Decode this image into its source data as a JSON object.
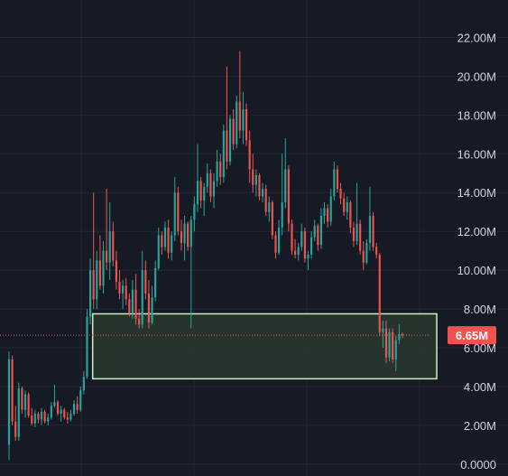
{
  "chart_data": {
    "type": "candlestick",
    "y_axis": {
      "ticks": [
        0,
        2000000,
        4000000,
        6000000,
        8000000,
        10000000,
        12000000,
        14000000,
        16000000,
        18000000,
        20000000,
        22000000
      ],
      "tick_labels": [
        "0.0000",
        "2.00M",
        "4.00M",
        "6.00M",
        "8.00M",
        "10.00M",
        "12.00M",
        "14.00M",
        "16.00M",
        "18.00M",
        "20.00M",
        "22.00M"
      ],
      "ylim": [
        -100000,
        23000000
      ],
      "position": "right"
    },
    "grid": true,
    "current_price": {
      "value": 6650000,
      "label": "6.65M"
    },
    "zone": {
      "from": 4400000,
      "to": 7750000,
      "start_index": 26,
      "end_index": 131
    },
    "colors": {
      "background": "#161a25",
      "up": "#26a69a",
      "down": "#ef5350",
      "grid": "#232734",
      "zone_border": "#c8f0c0",
      "zone_fill": "#2a3a30",
      "price_line": "#ef5350",
      "price_tag": "#ef5350"
    },
    "candles": [
      {
        "o": 1.0,
        "h": 5.8,
        "l": 0.2,
        "c": 5.4
      },
      {
        "o": 5.4,
        "h": 5.6,
        "l": 2.0,
        "c": 2.2
      },
      {
        "o": 2.2,
        "h": 3.0,
        "l": 1.2,
        "c": 1.4
      },
      {
        "o": 1.4,
        "h": 4.2,
        "l": 1.2,
        "c": 3.9
      },
      {
        "o": 3.9,
        "h": 4.0,
        "l": 2.6,
        "c": 2.8
      },
      {
        "o": 2.8,
        "h": 3.8,
        "l": 2.4,
        "c": 3.6
      },
      {
        "o": 3.6,
        "h": 3.7,
        "l": 2.4,
        "c": 2.5
      },
      {
        "o": 2.5,
        "h": 2.9,
        "l": 2.0,
        "c": 2.1
      },
      {
        "o": 2.1,
        "h": 2.8,
        "l": 1.9,
        "c": 2.6
      },
      {
        "o": 2.6,
        "h": 2.7,
        "l": 2.1,
        "c": 2.3
      },
      {
        "o": 2.3,
        "h": 2.9,
        "l": 2.0,
        "c": 2.7
      },
      {
        "o": 2.7,
        "h": 2.8,
        "l": 2.1,
        "c": 2.2
      },
      {
        "o": 2.2,
        "h": 2.6,
        "l": 2.0,
        "c": 2.4
      },
      {
        "o": 2.4,
        "h": 3.2,
        "l": 2.3,
        "c": 3.0
      },
      {
        "o": 3.0,
        "h": 4.1,
        "l": 2.9,
        "c": 3.2
      },
      {
        "o": 3.2,
        "h": 3.3,
        "l": 2.5,
        "c": 2.6
      },
      {
        "o": 2.6,
        "h": 3.0,
        "l": 2.2,
        "c": 2.8
      },
      {
        "o": 2.8,
        "h": 2.9,
        "l": 2.3,
        "c": 2.4
      },
      {
        "o": 2.4,
        "h": 2.7,
        "l": 2.1,
        "c": 2.3
      },
      {
        "o": 2.3,
        "h": 2.8,
        "l": 2.2,
        "c": 2.6
      },
      {
        "o": 2.6,
        "h": 3.3,
        "l": 2.5,
        "c": 3.1
      },
      {
        "o": 3.1,
        "h": 3.5,
        "l": 2.6,
        "c": 2.8
      },
      {
        "o": 2.8,
        "h": 4.0,
        "l": 2.7,
        "c": 3.8
      },
      {
        "o": 3.8,
        "h": 4.8,
        "l": 3.6,
        "c": 4.5
      },
      {
        "o": 4.5,
        "h": 8.0,
        "l": 4.4,
        "c": 7.6
      },
      {
        "o": 7.6,
        "h": 10.6,
        "l": 7.2,
        "c": 10.0
      },
      {
        "o": 10.0,
        "h": 14.0,
        "l": 8.0,
        "c": 8.5
      },
      {
        "o": 8.5,
        "h": 11.0,
        "l": 8.0,
        "c": 10.5
      },
      {
        "o": 10.5,
        "h": 11.8,
        "l": 9.0,
        "c": 9.2
      },
      {
        "o": 9.2,
        "h": 11.5,
        "l": 8.8,
        "c": 11.0
      },
      {
        "o": 11.0,
        "h": 14.2,
        "l": 10.0,
        "c": 10.4
      },
      {
        "o": 10.4,
        "h": 13.5,
        "l": 9.5,
        "c": 12.0
      },
      {
        "o": 12.0,
        "h": 12.5,
        "l": 10.2,
        "c": 10.5
      },
      {
        "o": 10.5,
        "h": 11.0,
        "l": 9.0,
        "c": 9.4
      },
      {
        "o": 9.4,
        "h": 10.0,
        "l": 8.5,
        "c": 8.8
      },
      {
        "o": 8.8,
        "h": 9.5,
        "l": 8.0,
        "c": 9.2
      },
      {
        "o": 9.2,
        "h": 9.6,
        "l": 8.2,
        "c": 8.5
      },
      {
        "o": 8.5,
        "h": 8.8,
        "l": 7.6,
        "c": 7.8
      },
      {
        "o": 7.8,
        "h": 9.5,
        "l": 7.5,
        "c": 9.0
      },
      {
        "o": 9.0,
        "h": 9.8,
        "l": 7.2,
        "c": 7.5
      },
      {
        "o": 7.5,
        "h": 8.0,
        "l": 7.0,
        "c": 7.2
      },
      {
        "o": 7.2,
        "h": 11.0,
        "l": 7.0,
        "c": 10.0
      },
      {
        "o": 10.0,
        "h": 10.5,
        "l": 8.5,
        "c": 8.8
      },
      {
        "o": 8.8,
        "h": 9.5,
        "l": 7.0,
        "c": 7.3
      },
      {
        "o": 7.3,
        "h": 9.2,
        "l": 7.2,
        "c": 8.6
      },
      {
        "o": 8.6,
        "h": 10.5,
        "l": 8.4,
        "c": 10.1
      },
      {
        "o": 10.1,
        "h": 12.2,
        "l": 10.0,
        "c": 11.8
      },
      {
        "o": 11.8,
        "h": 12.0,
        "l": 10.8,
        "c": 11.2
      },
      {
        "o": 11.2,
        "h": 12.5,
        "l": 11.0,
        "c": 12.2
      },
      {
        "o": 12.2,
        "h": 12.6,
        "l": 10.6,
        "c": 10.9
      },
      {
        "o": 10.9,
        "h": 12.0,
        "l": 10.5,
        "c": 11.8
      },
      {
        "o": 11.8,
        "h": 14.8,
        "l": 11.5,
        "c": 14.0
      },
      {
        "o": 14.0,
        "h": 14.3,
        "l": 11.8,
        "c": 12.0
      },
      {
        "o": 12.0,
        "h": 12.6,
        "l": 11.0,
        "c": 11.4
      },
      {
        "o": 11.4,
        "h": 12.8,
        "l": 10.5,
        "c": 12.4
      },
      {
        "o": 12.4,
        "h": 12.5,
        "l": 11.0,
        "c": 11.2
      },
      {
        "o": 11.2,
        "h": 12.8,
        "l": 7.0,
        "c": 12.6
      },
      {
        "o": 12.6,
        "h": 13.8,
        "l": 12.0,
        "c": 13.4
      },
      {
        "o": 13.4,
        "h": 16.5,
        "l": 13.0,
        "c": 14.6
      },
      {
        "o": 14.6,
        "h": 14.8,
        "l": 13.2,
        "c": 13.6
      },
      {
        "o": 13.6,
        "h": 14.5,
        "l": 12.8,
        "c": 14.3
      },
      {
        "o": 14.3,
        "h": 15.5,
        "l": 14.0,
        "c": 15.0
      },
      {
        "o": 15.0,
        "h": 15.2,
        "l": 13.5,
        "c": 13.8
      },
      {
        "o": 13.8,
        "h": 15.0,
        "l": 13.2,
        "c": 14.6
      },
      {
        "o": 14.6,
        "h": 16.2,
        "l": 14.3,
        "c": 15.6
      },
      {
        "o": 15.6,
        "h": 16.0,
        "l": 14.4,
        "c": 14.8
      },
      {
        "o": 14.8,
        "h": 17.5,
        "l": 14.5,
        "c": 17.2
      },
      {
        "o": 17.2,
        "h": 20.5,
        "l": 15.2,
        "c": 15.6
      },
      {
        "o": 15.6,
        "h": 18.0,
        "l": 15.4,
        "c": 17.8
      },
      {
        "o": 17.8,
        "h": 18.3,
        "l": 16.2,
        "c": 16.5
      },
      {
        "o": 16.5,
        "h": 19.0,
        "l": 16.3,
        "c": 18.7
      },
      {
        "o": 18.7,
        "h": 21.3,
        "l": 16.8,
        "c": 17.2
      },
      {
        "o": 17.2,
        "h": 19.2,
        "l": 16.5,
        "c": 18.3
      },
      {
        "o": 18.3,
        "h": 18.6,
        "l": 16.4,
        "c": 16.7
      },
      {
        "o": 16.7,
        "h": 17.2,
        "l": 14.5,
        "c": 15.2
      },
      {
        "o": 15.2,
        "h": 16.0,
        "l": 14.0,
        "c": 14.4
      },
      {
        "o": 14.4,
        "h": 15.2,
        "l": 13.8,
        "c": 14.9
      },
      {
        "o": 14.9,
        "h": 15.0,
        "l": 13.6,
        "c": 13.8
      },
      {
        "o": 13.8,
        "h": 14.5,
        "l": 13.5,
        "c": 14.2
      },
      {
        "o": 14.2,
        "h": 14.4,
        "l": 12.8,
        "c": 13.0
      },
      {
        "o": 13.0,
        "h": 13.8,
        "l": 12.5,
        "c": 13.5
      },
      {
        "o": 13.5,
        "h": 13.6,
        "l": 11.6,
        "c": 11.8
      },
      {
        "o": 11.8,
        "h": 12.0,
        "l": 10.6,
        "c": 10.9
      },
      {
        "o": 10.9,
        "h": 12.6,
        "l": 10.8,
        "c": 12.2
      },
      {
        "o": 12.2,
        "h": 16.0,
        "l": 11.8,
        "c": 13.5
      },
      {
        "o": 13.5,
        "h": 16.8,
        "l": 13.2,
        "c": 15.2
      },
      {
        "o": 15.2,
        "h": 15.4,
        "l": 12.0,
        "c": 12.4
      },
      {
        "o": 12.4,
        "h": 12.6,
        "l": 10.8,
        "c": 11.0
      },
      {
        "o": 11.0,
        "h": 11.6,
        "l": 10.6,
        "c": 10.8
      },
      {
        "o": 10.8,
        "h": 11.4,
        "l": 10.5,
        "c": 11.2
      },
      {
        "o": 11.2,
        "h": 12.4,
        "l": 11.0,
        "c": 12.0
      },
      {
        "o": 12.0,
        "h": 12.2,
        "l": 10.4,
        "c": 10.6
      },
      {
        "o": 10.6,
        "h": 11.0,
        "l": 10.0,
        "c": 10.8
      },
      {
        "o": 10.8,
        "h": 12.0,
        "l": 10.6,
        "c": 11.7
      },
      {
        "o": 11.7,
        "h": 12.6,
        "l": 11.5,
        "c": 12.3
      },
      {
        "o": 12.3,
        "h": 12.4,
        "l": 11.0,
        "c": 11.3
      },
      {
        "o": 11.3,
        "h": 13.2,
        "l": 11.1,
        "c": 12.8
      },
      {
        "o": 12.8,
        "h": 13.5,
        "l": 12.4,
        "c": 13.2
      },
      {
        "o": 13.2,
        "h": 13.4,
        "l": 12.2,
        "c": 12.5
      },
      {
        "o": 12.5,
        "h": 14.2,
        "l": 12.3,
        "c": 13.8
      },
      {
        "o": 13.8,
        "h": 15.6,
        "l": 13.6,
        "c": 15.2
      },
      {
        "o": 15.2,
        "h": 15.4,
        "l": 14.0,
        "c": 14.2
      },
      {
        "o": 14.2,
        "h": 14.5,
        "l": 13.4,
        "c": 13.7
      },
      {
        "o": 13.7,
        "h": 14.0,
        "l": 12.8,
        "c": 13.0
      },
      {
        "o": 13.0,
        "h": 13.8,
        "l": 12.6,
        "c": 13.5
      },
      {
        "o": 13.5,
        "h": 13.6,
        "l": 11.9,
        "c": 12.2
      },
      {
        "o": 12.2,
        "h": 12.5,
        "l": 11.2,
        "c": 11.5
      },
      {
        "o": 11.5,
        "h": 14.5,
        "l": 11.3,
        "c": 12.4
      },
      {
        "o": 12.4,
        "h": 12.6,
        "l": 10.8,
        "c": 11.0
      },
      {
        "o": 11.0,
        "h": 11.5,
        "l": 10.0,
        "c": 10.4
      },
      {
        "o": 10.4,
        "h": 11.6,
        "l": 10.3,
        "c": 11.4
      },
      {
        "o": 11.4,
        "h": 14.3,
        "l": 11.0,
        "c": 12.8
      },
      {
        "o": 12.8,
        "h": 13.0,
        "l": 11.0,
        "c": 11.2
      },
      {
        "o": 11.2,
        "h": 11.4,
        "l": 10.6,
        "c": 10.8
      },
      {
        "o": 10.8,
        "h": 10.9,
        "l": 6.6,
        "c": 6.8
      },
      {
        "o": 6.8,
        "h": 7.4,
        "l": 6.0,
        "c": 7.0
      },
      {
        "o": 7.0,
        "h": 7.4,
        "l": 5.2,
        "c": 5.5
      },
      {
        "o": 5.5,
        "h": 7.0,
        "l": 5.3,
        "c": 6.8
      },
      {
        "o": 6.8,
        "h": 7.0,
        "l": 5.2,
        "c": 5.4
      },
      {
        "o": 5.4,
        "h": 6.6,
        "l": 4.8,
        "c": 6.4
      },
      {
        "o": 6.4,
        "h": 7.2,
        "l": 6.2,
        "c": 6.7
      },
      {
        "o": 6.7,
        "h": 6.8,
        "l": 6.5,
        "c": 6.65
      }
    ]
  }
}
